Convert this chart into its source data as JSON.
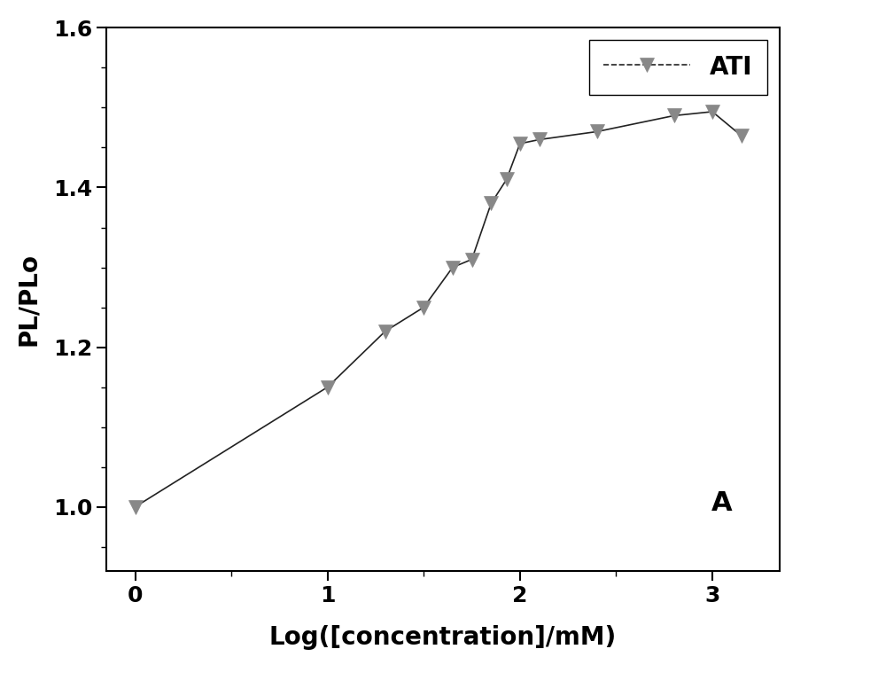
{
  "x": [
    0.0,
    1.0,
    1.3,
    1.5,
    1.65,
    1.75,
    1.85,
    1.93,
    2.0,
    2.1,
    2.4,
    2.8,
    3.0,
    3.15
  ],
  "y": [
    1.0,
    1.15,
    1.22,
    1.25,
    1.3,
    1.31,
    1.38,
    1.41,
    1.455,
    1.46,
    1.47,
    1.49,
    1.495,
    1.465
  ],
  "xlabel": "Log([concentration]/mM)",
  "ylabel": "PL/PLo",
  "legend_label": "ATI",
  "annotation": "A",
  "xlim": [
    -0.15,
    3.35
  ],
  "ylim": [
    0.92,
    1.6
  ],
  "xticks": [
    0,
    1,
    2,
    3
  ],
  "yticks": [
    1.0,
    1.2,
    1.4,
    1.6
  ],
  "line_color": "#222222",
  "marker_color": "#888888",
  "background_color": "#ffffff",
  "label_fontsize": 20,
  "tick_fontsize": 18,
  "legend_fontsize": 20,
  "annotation_fontsize": 22,
  "linewidth": 1.2,
  "markersize": 12
}
